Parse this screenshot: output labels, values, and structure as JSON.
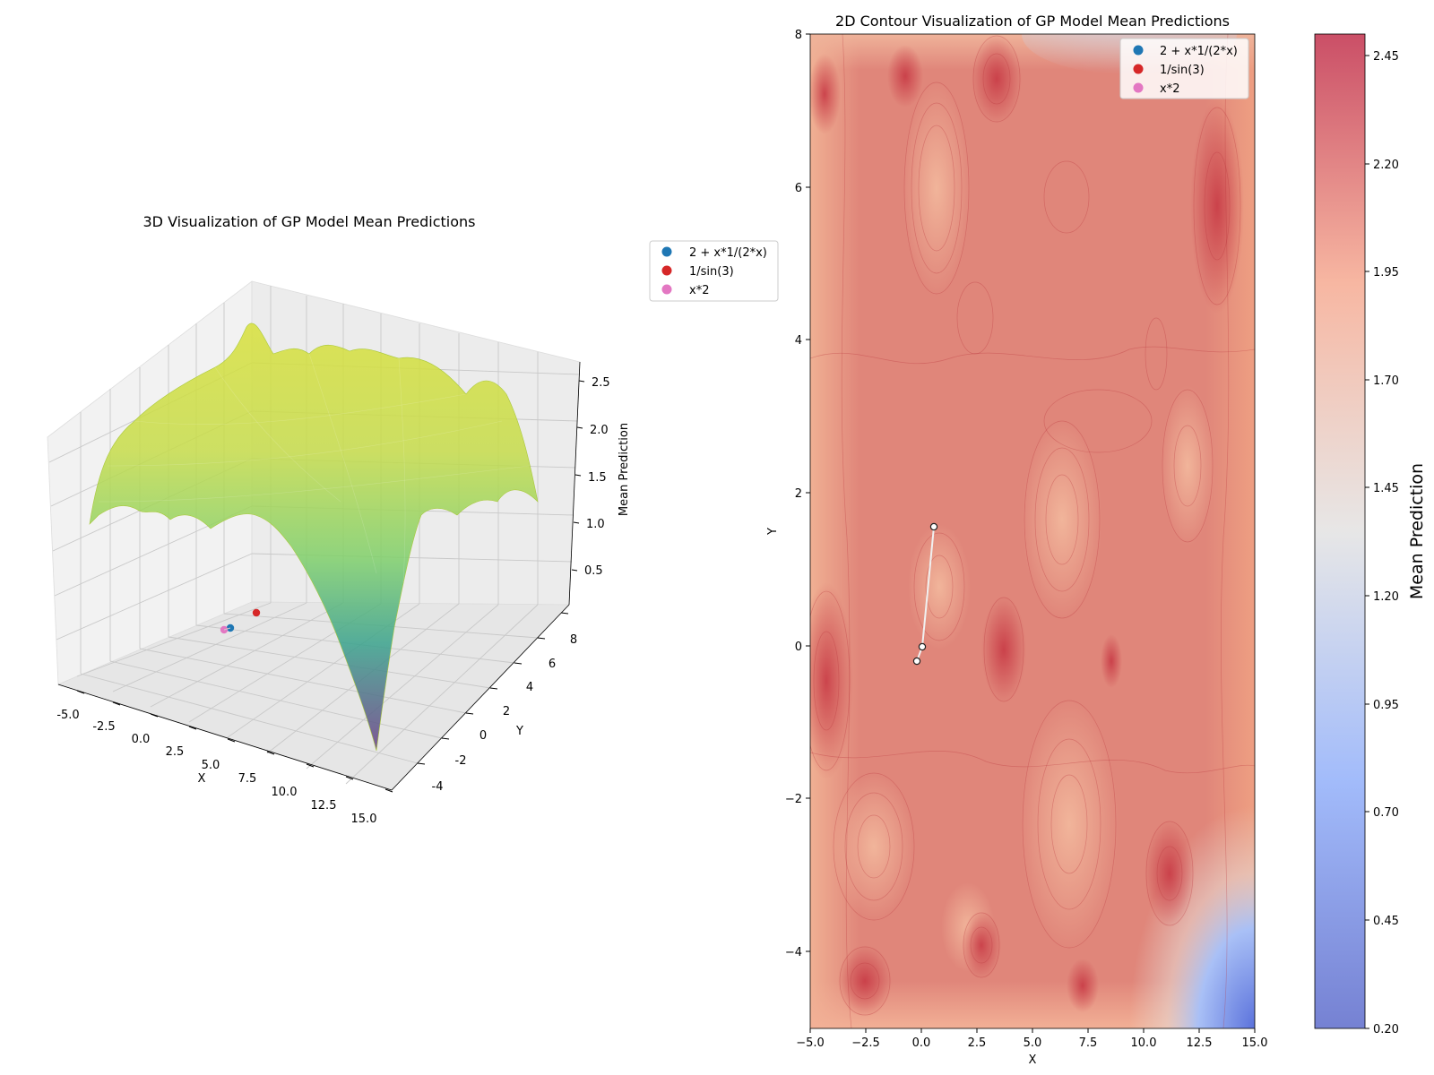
{
  "chart_data": [
    {
      "type": "surface3d",
      "title": "3D Visualization of GP Model Mean Predictions",
      "xlabel": "X",
      "ylabel": "Y",
      "zlabel": "Mean Prediction",
      "xlim": [
        -5,
        15
      ],
      "ylim": [
        -5,
        8
      ],
      "zlim": [
        0.2,
        2.6
      ],
      "xticks": [
        "-5.0",
        "-2.5",
        "0.0",
        "2.5",
        "5.0",
        "7.5",
        "10.0",
        "12.5",
        "15.0"
      ],
      "yticks": [
        "-4",
        "-2",
        "0",
        "2",
        "4",
        "6",
        "8"
      ],
      "zticks": [
        "0.5",
        "1.0",
        "1.5",
        "2.0",
        "2.5"
      ],
      "colormap": "viridis",
      "series": [
        {
          "name": "2 + x*1/(2*x)",
          "color": "#1f77b4",
          "points": [
            {
              "x": 0.0,
              "y": 0.0
            }
          ]
        },
        {
          "name": "1/sin(3)",
          "color": "#d62728",
          "points": [
            {
              "x": 0.5,
              "y": 1.55
            }
          ]
        },
        {
          "name": "x*2",
          "color": "#e377c2",
          "points": [
            {
              "x": -0.3,
              "y": -0.2
            }
          ]
        }
      ]
    },
    {
      "type": "contour",
      "title": "2D Contour Visualization of GP Model Mean Predictions",
      "xlabel": "X",
      "ylabel": "Y",
      "xlim": [
        -5,
        15
      ],
      "ylim": [
        -5,
        8
      ],
      "xticks": [
        "−5.0",
        "−2.5",
        "0.0",
        "2.5",
        "5.0",
        "7.5",
        "10.0",
        "12.5",
        "15.0"
      ],
      "yticks": [
        "−4",
        "−2",
        "0",
        "2",
        "4",
        "6",
        "8"
      ],
      "colormap": "coolwarm",
      "colorbar": {
        "label": "Mean Prediction",
        "range": [
          0.2,
          2.5
        ],
        "ticks": [
          "0.20",
          "0.45",
          "0.70",
          "0.95",
          "1.20",
          "1.45",
          "1.70",
          "1.95",
          "2.20",
          "2.45"
        ]
      },
      "path": [
        {
          "x": 0.5,
          "y": 1.55
        },
        {
          "x": 0.0,
          "y": 0.0
        },
        {
          "x": -0.3,
          "y": -0.2
        }
      ],
      "series": [
        {
          "name": "2 + x*1/(2*x)",
          "color": "#1f77b4",
          "points": [
            {
              "x": 0.0,
              "y": 0.0
            }
          ]
        },
        {
          "name": "1/sin(3)",
          "color": "#d62728",
          "points": [
            {
              "x": 0.5,
              "y": 1.55
            }
          ]
        },
        {
          "name": "x*2",
          "color": "#e377c2",
          "points": [
            {
              "x": -0.3,
              "y": -0.2
            }
          ]
        }
      ]
    }
  ]
}
